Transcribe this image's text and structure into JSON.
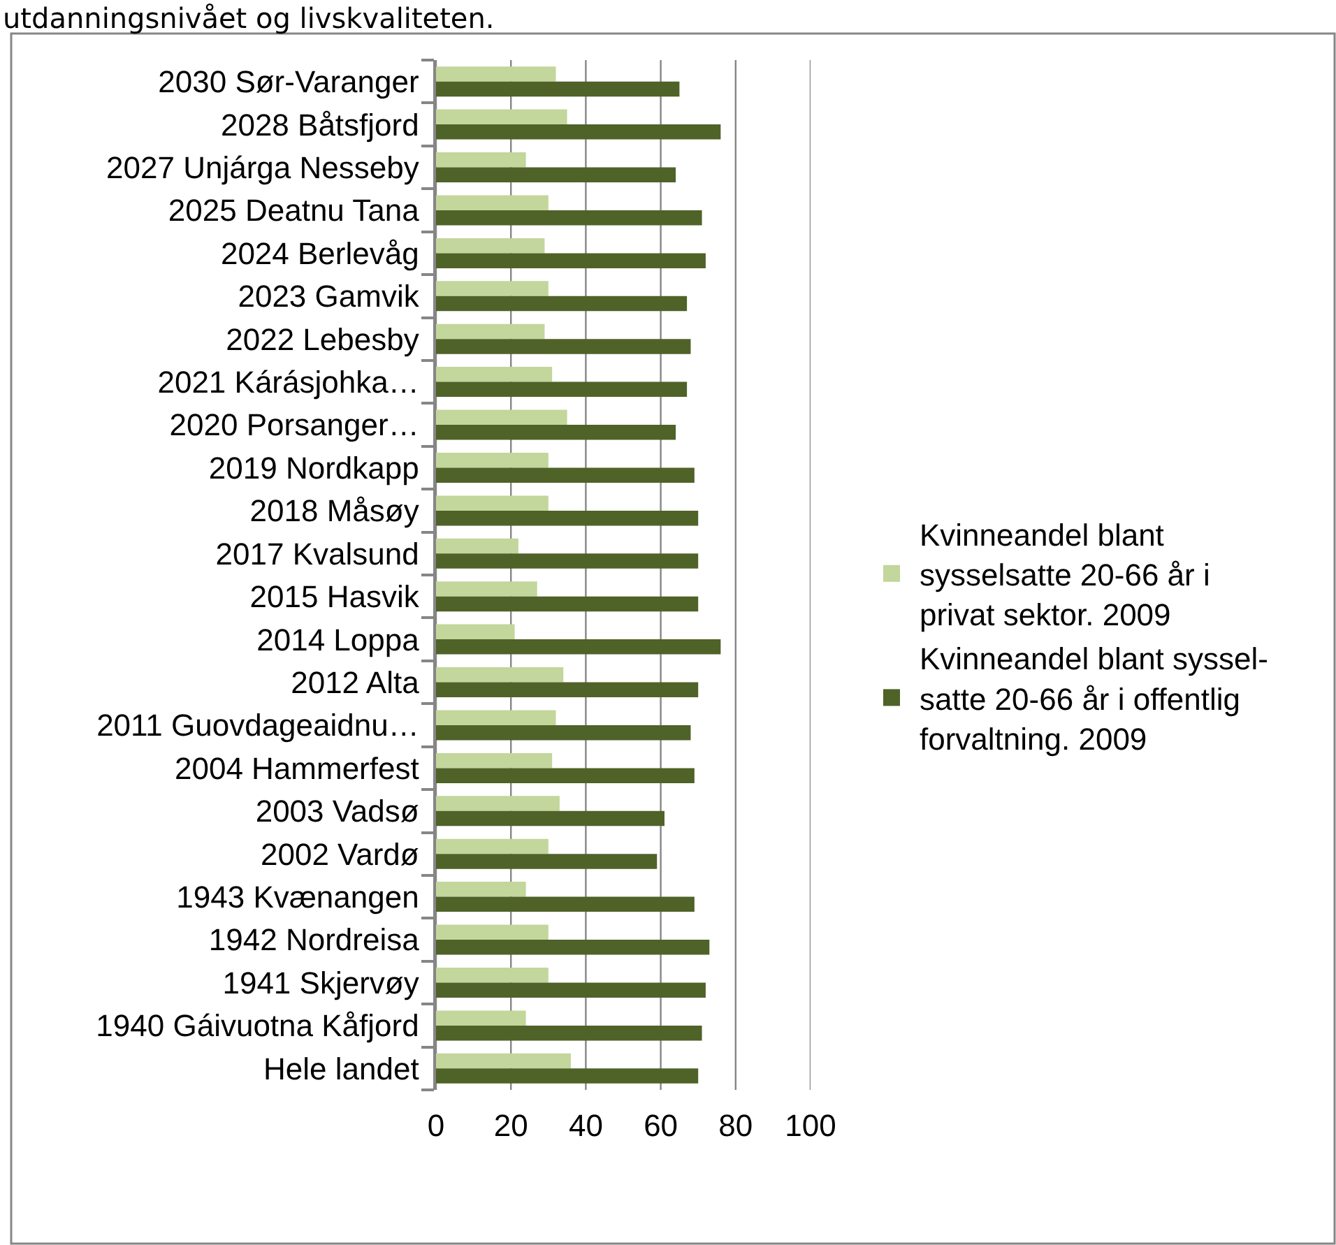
{
  "chart_data": {
    "type": "bar",
    "orientation": "horizontal",
    "annotations": [
      "utdanningsnivået og livskvaliteten."
    ],
    "categories": [
      "2030 Sør-Varanger",
      "2028 Båtsfjord",
      "2027 Unjárga Nesseby",
      "2025 Deatnu Tana",
      "2024 Berlevåg",
      "2023 Gamvik",
      "2022 Lebesby",
      "2021 Kárásjohka…",
      "2020 Porsanger…",
      "2019 Nordkapp",
      "2018 Måsøy",
      "2017 Kvalsund",
      "2015 Hasvik",
      "2014 Loppa",
      "2012 Alta",
      "2011 Guovdageaidnu…",
      "2004 Hammerfest",
      "2003 Vadsø",
      "2002 Vardø",
      "1943 Kvænangen",
      "1942 Nordreisa",
      "1941 Skjervøy",
      "1940 Gáivuotna Kåfjord",
      "Hele landet"
    ],
    "series": [
      {
        "name": "Kvinneandel blant\nsysselsatte 20-66 år i\nprivat sektor. 2009",
        "color": "#c3d69b",
        "values": [
          32,
          35,
          24,
          30,
          29,
          30,
          29,
          31,
          35,
          30,
          30,
          22,
          27,
          21,
          34,
          32,
          31,
          33,
          30,
          24,
          30,
          30,
          24,
          36
        ]
      },
      {
        "name": "Kvinneandel blant syssel-\nsatte 20-66 år i offentlig\nforvaltning. 2009",
        "color": "#4f6228",
        "values": [
          65,
          76,
          64,
          71,
          72,
          67,
          68,
          67,
          64,
          69,
          70,
          70,
          70,
          76,
          70,
          68,
          69,
          61,
          59,
          69,
          73,
          72,
          71,
          70
        ]
      }
    ],
    "xlim": [
      0,
      100
    ],
    "xticks": [
      0,
      20,
      40,
      60,
      80,
      100
    ],
    "grid": "x",
    "legend": "right"
  }
}
